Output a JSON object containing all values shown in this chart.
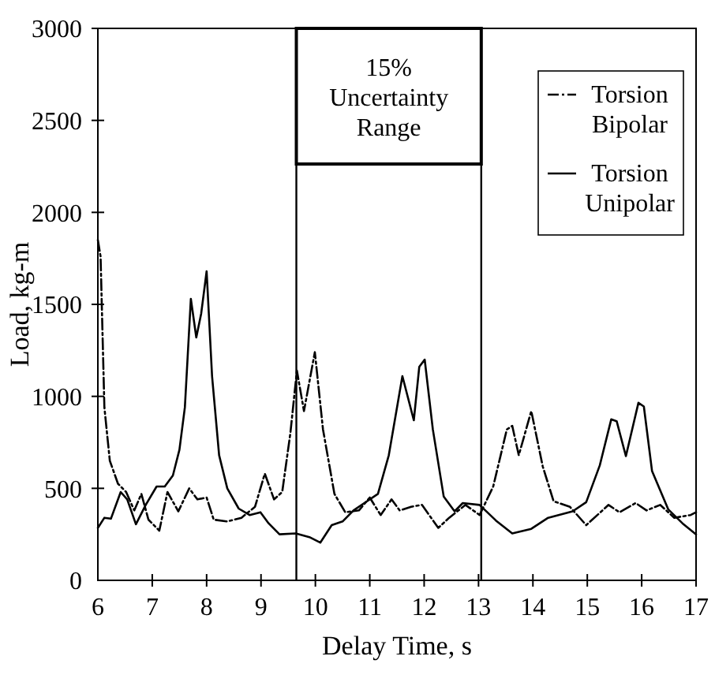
{
  "chart_data": {
    "type": "line",
    "xlabel": "Delay Time, s",
    "ylabel": "Load, kg-m",
    "xlim": [
      6,
      17
    ],
    "xticks": [
      6,
      7,
      8,
      9,
      10,
      11,
      12,
      13,
      14,
      15,
      16,
      17
    ],
    "ylim": [
      0,
      3000
    ],
    "yticks": [
      0,
      500,
      1000,
      1500,
      2000,
      2500,
      3000
    ],
    "grid": false,
    "legend": "top right",
    "ref_lines": [
      {
        "axis": "x",
        "value": 9.65
      },
      {
        "axis": "x",
        "value": 13.05
      }
    ],
    "annotations": [
      "15% Uncertainty Range"
    ],
    "series": [
      {
        "name": "Torsion Bipolar",
        "color": "#000000",
        "line_style": "dashed",
        "x": [
          6.0,
          6.05,
          6.12,
          6.22,
          6.37,
          6.52,
          6.67,
          6.8,
          6.93,
          7.13,
          7.28,
          7.48,
          7.68,
          7.83,
          8.0,
          8.13,
          8.38,
          8.64,
          8.89,
          9.07,
          9.24,
          9.39,
          9.54,
          9.66,
          9.79,
          9.99,
          10.14,
          10.35,
          10.55,
          10.8,
          11.0,
          11.2,
          11.4,
          11.55,
          11.76,
          11.96,
          12.26,
          12.46,
          12.76,
          13.02,
          13.27,
          13.52,
          13.62,
          13.74,
          13.97,
          14.18,
          14.38,
          14.68,
          14.98,
          15.39,
          15.59,
          15.89,
          16.09,
          16.34,
          16.6,
          16.9,
          17.0
        ],
        "values": [
          1850,
          1760,
          940,
          650,
          525,
          480,
          380,
          470,
          330,
          270,
          480,
          375,
          500,
          440,
          450,
          330,
          320,
          340,
          400,
          580,
          440,
          480,
          800,
          1140,
          920,
          1240,
          820,
          470,
          370,
          380,
          450,
          355,
          440,
          380,
          400,
          410,
          285,
          340,
          410,
          355,
          510,
          820,
          840,
          680,
          920,
          620,
          430,
          400,
          300,
          410,
          370,
          420,
          380,
          410,
          340,
          355,
          370
        ]
      },
      {
        "name": "Torsion Unipolar",
        "color": "#000000",
        "line_style": "solid",
        "x": [
          6.0,
          6.12,
          6.24,
          6.42,
          6.54,
          6.7,
          6.88,
          7.08,
          7.23,
          7.38,
          7.5,
          7.6,
          7.71,
          7.81,
          7.9,
          8.0,
          8.1,
          8.23,
          8.38,
          8.59,
          8.79,
          8.99,
          9.14,
          9.34,
          9.64,
          9.89,
          10.09,
          10.3,
          10.5,
          10.7,
          10.9,
          11.15,
          11.35,
          11.6,
          11.81,
          11.91,
          12.01,
          12.16,
          12.36,
          12.56,
          12.71,
          13.02,
          13.32,
          13.62,
          13.97,
          14.28,
          14.73,
          14.98,
          15.23,
          15.44,
          15.54,
          15.71,
          15.94,
          16.04,
          16.19,
          16.49,
          16.75,
          17.0
        ],
        "values": [
          285,
          340,
          335,
          480,
          440,
          305,
          410,
          510,
          510,
          570,
          710,
          940,
          1530,
          1320,
          1450,
          1680,
          1110,
          680,
          500,
          390,
          355,
          370,
          310,
          250,
          255,
          235,
          205,
          300,
          320,
          380,
          420,
          470,
          680,
          1110,
          870,
          1160,
          1200,
          820,
          455,
          375,
          420,
          410,
          325,
          255,
          280,
          340,
          375,
          425,
          625,
          875,
          865,
          675,
          965,
          945,
          595,
          385,
          310,
          250
        ]
      }
    ]
  }
}
